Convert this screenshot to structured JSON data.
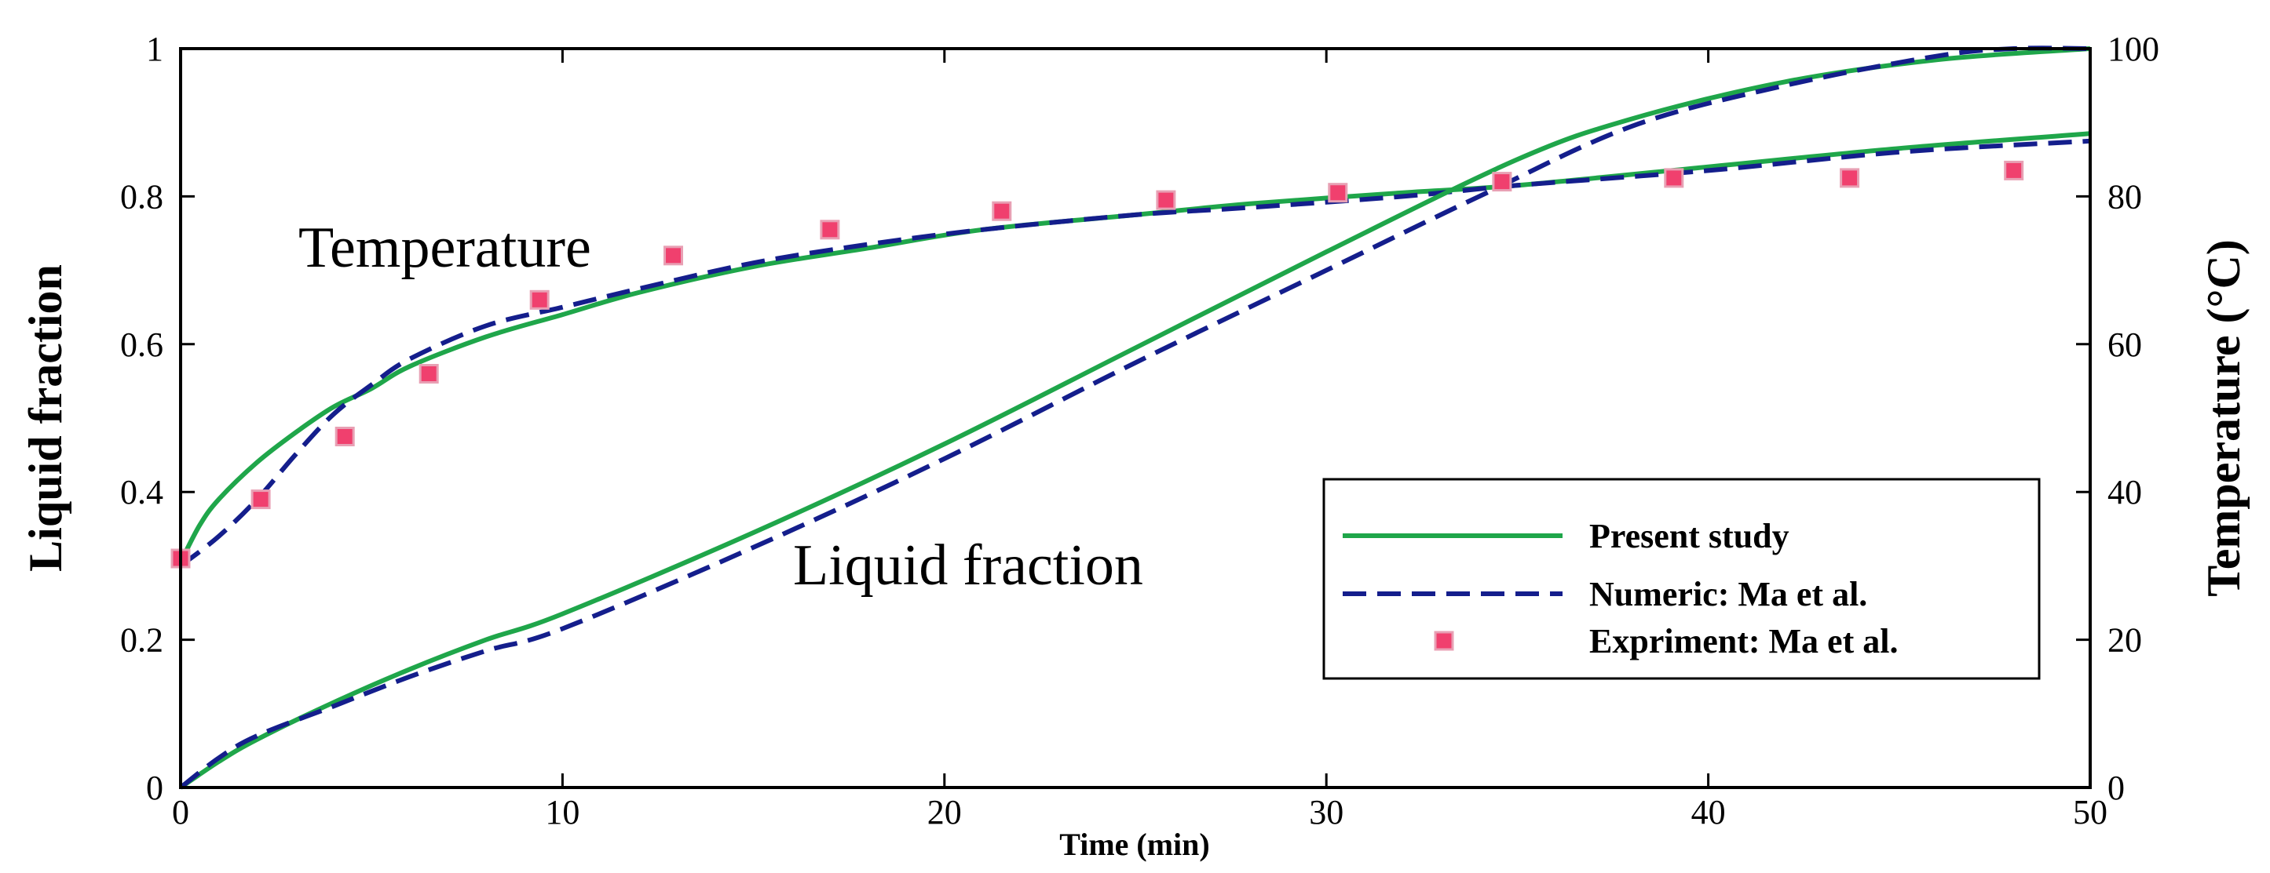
{
  "chart_data": {
    "type": "line",
    "xlabel": "Time (min)",
    "ylabel": "Liquid fraction",
    "y2label": "Temperature (°C)",
    "xlim": [
      0,
      50
    ],
    "ylim": [
      0,
      1
    ],
    "y2lim": [
      0,
      100
    ],
    "x_ticks": [
      "0",
      "10",
      "20",
      "30",
      "40",
      "50"
    ],
    "y_ticks": [
      "0",
      "0.2",
      "0.4",
      "0.6",
      "0.8",
      "1"
    ],
    "y2_ticks": [
      "0",
      "20",
      "40",
      "60",
      "80",
      "100"
    ],
    "annotations": {
      "temperature": "Temperature",
      "liquid_fraction": "Liquid fraction"
    },
    "legend": {
      "position": "lower-right",
      "entries": [
        "Present study",
        "Numeric: Ma et al.",
        "Expriment: Ma et al."
      ]
    },
    "colors": {
      "present": "#1fa64a",
      "numeric": "#141e8c",
      "experiment": "#f0406e",
      "experiment_edge": "#e8a0b4"
    },
    "series": [
      {
        "name": "Present study",
        "quantity": "Temperature",
        "axis": "right",
        "style": "solid",
        "x": [
          0,
          0.5,
          1,
          2,
          3,
          4,
          5,
          6,
          8,
          10,
          12,
          15,
          18,
          21,
          25,
          28,
          32,
          35,
          40,
          45,
          50
        ],
        "y": [
          30.5,
          35.5,
          39,
          44,
          48,
          51.5,
          54,
          57,
          61,
          64,
          67,
          70.5,
          73,
          75.5,
          77.5,
          79,
          80.5,
          81.5,
          84,
          86.5,
          88.5
        ]
      },
      {
        "name": "Numeric: Ma et al.",
        "quantity": "Temperature",
        "axis": "right",
        "style": "dashed",
        "x": [
          0,
          1,
          2,
          3,
          4,
          5,
          6,
          8,
          10,
          12,
          15,
          18,
          21,
          25,
          28,
          32,
          35,
          40,
          45,
          50
        ],
        "y": [
          30,
          34,
          39,
          45,
          50.5,
          54.5,
          58,
          62.5,
          65,
          67.5,
          71,
          73.5,
          75.5,
          77.5,
          78.5,
          80,
          81.5,
          83.5,
          86,
          87.5
        ]
      },
      {
        "name": "Present study",
        "quantity": "Liquid fraction",
        "axis": "left",
        "style": "solid",
        "x": [
          0,
          1,
          2,
          4,
          6,
          8,
          10,
          15,
          20,
          25,
          30,
          35,
          38,
          42,
          46,
          50
        ],
        "y": [
          0,
          0.035,
          0.065,
          0.115,
          0.16,
          0.2,
          0.235,
          0.345,
          0.465,
          0.595,
          0.725,
          0.85,
          0.905,
          0.955,
          0.985,
          1.0
        ]
      },
      {
        "name": "Numeric: Ma et al.",
        "quantity": "Liquid fraction",
        "axis": "left",
        "style": "dashed",
        "x": [
          0,
          1,
          2,
          4,
          6,
          8,
          10,
          15,
          20,
          25,
          30,
          34,
          38,
          42,
          46,
          48,
          50
        ],
        "y": [
          0,
          0.04,
          0.07,
          0.11,
          0.15,
          0.185,
          0.215,
          0.325,
          0.445,
          0.575,
          0.7,
          0.8,
          0.895,
          0.95,
          0.99,
          1.0,
          1.0
        ]
      },
      {
        "name": "Expriment: Ma et al.",
        "quantity": "Temperature",
        "axis": "right",
        "style": "markers",
        "x": [
          0,
          2.1,
          4.3,
          6.5,
          9.4,
          12.9,
          17.0,
          21.5,
          25.8,
          30.3,
          34.6,
          39.1,
          43.7,
          48.0
        ],
        "y": [
          31,
          39,
          47.5,
          56,
          66,
          72,
          75.5,
          78,
          79.5,
          80.5,
          82,
          82.5,
          82.5,
          83.5
        ]
      }
    ]
  }
}
